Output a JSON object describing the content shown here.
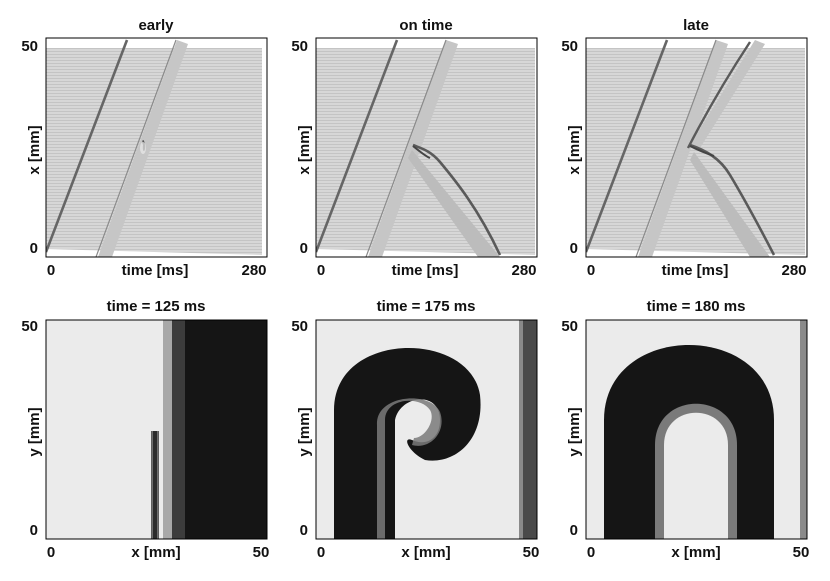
{
  "chart_data": [
    {
      "type": "heatmap",
      "title": "early",
      "xlabel": "time [ms]",
      "ylabel": "x [mm]",
      "x_ticks": [
        "0",
        "280"
      ],
      "y_ticks": [
        "0",
        "50"
      ],
      "xlim": [
        0,
        280
      ],
      "ylim": [
        0,
        50
      ]
    },
    {
      "type": "heatmap",
      "title": "on time",
      "xlabel": "time [ms]",
      "ylabel": "x [mm]",
      "x_ticks": [
        "0",
        "280"
      ],
      "y_ticks": [
        "0",
        "50"
      ],
      "xlim": [
        0,
        280
      ],
      "ylim": [
        0,
        50
      ]
    },
    {
      "type": "heatmap",
      "title": "late",
      "xlabel": "time [ms]",
      "ylabel": "x [mm]",
      "x_ticks": [
        "0",
        "280"
      ],
      "y_ticks": [
        "0",
        "50"
      ],
      "xlim": [
        0,
        280
      ],
      "ylim": [
        0,
        50
      ]
    },
    {
      "type": "heatmap",
      "title": "time = 125 ms",
      "xlabel": "x [mm]",
      "ylabel": "y [mm]",
      "x_ticks": [
        "0",
        "50"
      ],
      "y_ticks": [
        "0",
        "50"
      ],
      "xlim": [
        0,
        50
      ],
      "ylim": [
        0,
        50
      ]
    },
    {
      "type": "heatmap",
      "title": "time = 175 ms",
      "xlabel": "x [mm]",
      "ylabel": "y [mm]",
      "x_ticks": [
        "0",
        "50"
      ],
      "y_ticks": [
        "0",
        "50"
      ],
      "xlim": [
        0,
        50
      ],
      "ylim": [
        0,
        50
      ]
    },
    {
      "type": "heatmap",
      "title": "time = 180 ms",
      "xlabel": "x [mm]",
      "ylabel": "y [mm]",
      "x_ticks": [
        "0",
        "50"
      ],
      "y_ticks": [
        "0",
        "50"
      ],
      "xlim": [
        0,
        50
      ],
      "ylim": [
        0,
        50
      ]
    }
  ]
}
